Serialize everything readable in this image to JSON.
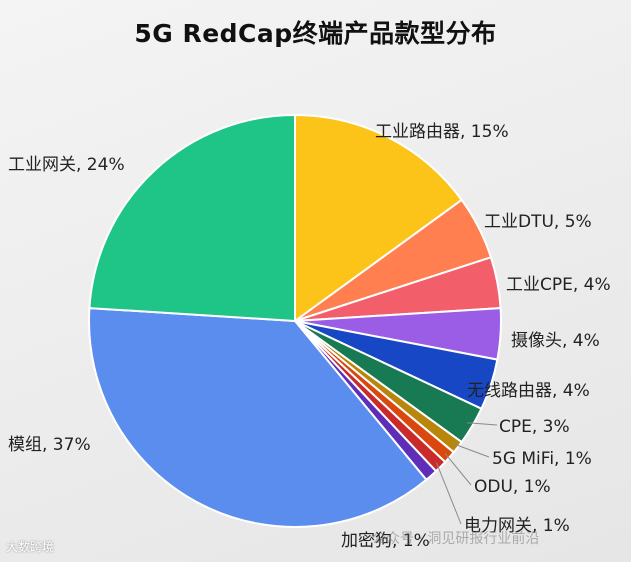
{
  "chart_data": {
    "type": "pie",
    "title": "5G RedCap终端产品款型分布",
    "slices": [
      {
        "label": "工业路由器",
        "value": 15,
        "pct_label": "15%",
        "color": "#fcc419"
      },
      {
        "label": "工业DTU",
        "value": 5,
        "pct_label": "5%",
        "color": "#ff7f50"
      },
      {
        "label": "工业CPE",
        "value": 4,
        "pct_label": "4%",
        "color": "#f25f6a"
      },
      {
        "label": "摄像头",
        "value": 4,
        "pct_label": "4%",
        "color": "#9b5de5"
      },
      {
        "label": "无线路由器",
        "value": 4,
        "pct_label": "4%",
        "color": "#1747c4"
      },
      {
        "label": "CPE",
        "value": 3,
        "pct_label": "3%",
        "color": "#177a53"
      },
      {
        "label": "5G MiFi",
        "value": 1,
        "pct_label": "1%",
        "color": "#b8860b"
      },
      {
        "label": "ODU",
        "value": 1,
        "pct_label": "1%",
        "color": "#d9480f"
      },
      {
        "label": "电力网关",
        "value": 1,
        "pct_label": "1%",
        "color": "#c92a2a"
      },
      {
        "label": "加密狗",
        "value": 1,
        "pct_label": "1%",
        "color": "#5f2eb8"
      },
      {
        "label": "模组",
        "value": 37,
        "pct_label": "37%",
        "color": "#5b8def"
      },
      {
        "label": "工业网关",
        "value": 24,
        "pct_label": "24%",
        "color": "#1fc487"
      }
    ]
  },
  "watermarks": {
    "left": "大数跨境",
    "right": "公众号 · 洞见研报行业前沿"
  }
}
